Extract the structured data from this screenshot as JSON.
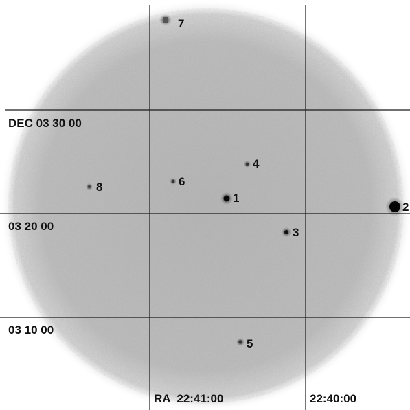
{
  "image": {
    "type": "x-ray sky field image with coordinate grid",
    "background_color": "#ffffff",
    "field_color": "#b9b9b9",
    "grid_color": "#1a1a1a",
    "source_color": "#111111"
  },
  "declination_labels": [
    {
      "id": "dec-1",
      "text": "DEC 03 30 00"
    },
    {
      "id": "dec-2",
      "text": "03 20 00"
    },
    {
      "id": "dec-3",
      "text": "03 10 00"
    }
  ],
  "right_ascension_labels": [
    {
      "id": "ra-1",
      "text": "RA  22:41:00"
    },
    {
      "id": "ra-2",
      "text": "22:40:00"
    }
  ],
  "sources": [
    {
      "label": "1",
      "brightness": "bright"
    },
    {
      "label": "2",
      "brightness": "brightest"
    },
    {
      "label": "3",
      "brightness": "medium"
    },
    {
      "label": "4",
      "brightness": "faint"
    },
    {
      "label": "5",
      "brightness": "faint"
    },
    {
      "label": "6",
      "brightness": "faint"
    },
    {
      "label": "7",
      "brightness": "faint-extended"
    },
    {
      "label": "8",
      "brightness": "faint"
    }
  ]
}
